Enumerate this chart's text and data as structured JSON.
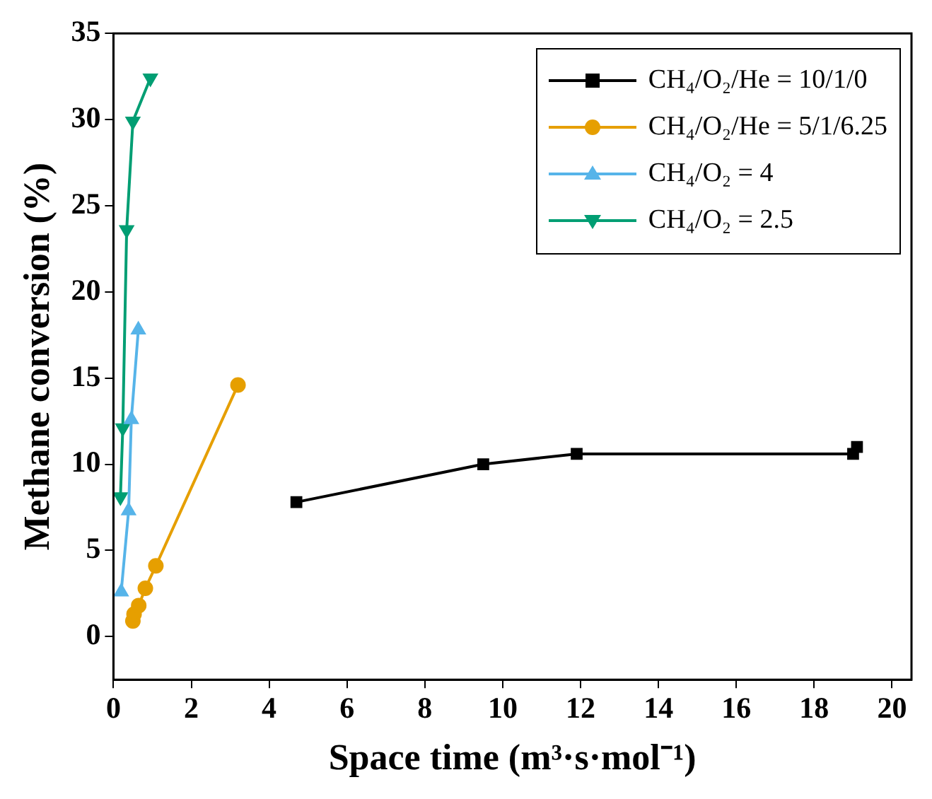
{
  "chart_data": {
    "type": "line",
    "xlabel": "Space time (m³·s·mol⁻¹)",
    "ylabel": "Methane conversion (%)",
    "xlim": [
      0,
      20.5
    ],
    "xticks": [
      0,
      2,
      4,
      6,
      8,
      10,
      12,
      14,
      16,
      18,
      20
    ],
    "ylim": [
      -2.5,
      35
    ],
    "yticks": [
      0,
      5,
      10,
      15,
      20,
      25,
      30,
      35
    ],
    "grid": false,
    "legend": "top right",
    "line_style": "solid",
    "series": [
      {
        "name": "CH₄/O₂/He = 10/1/0",
        "color": "#000000",
        "marker": "square",
        "x": [
          4.7,
          9.5,
          11.9,
          19.0,
          19.1
        ],
        "values": [
          7.8,
          10.0,
          10.6,
          10.6,
          11.0
        ]
      },
      {
        "name": "CH₄/O₂/He = 5/1/6.25",
        "color": "#e69f00",
        "marker": "circle",
        "x": [
          0.5,
          0.53,
          0.65,
          0.82,
          1.09,
          3.2
        ],
        "values": [
          0.9,
          1.3,
          1.8,
          2.8,
          4.1,
          14.6
        ]
      },
      {
        "name": "CH₄/O₂ = 4",
        "color": "#56b4e9",
        "marker": "triangle",
        "x": [
          0.2,
          0.39,
          0.46,
          0.64
        ],
        "values": [
          2.6,
          7.3,
          12.6,
          17.8
        ]
      },
      {
        "name": "CH₄/O₂ = 2.5",
        "color": "#009e73",
        "marker": "triangle-down",
        "x": [
          0.18,
          0.24,
          0.34,
          0.5,
          0.95
        ],
        "values": [
          8.1,
          12.1,
          23.6,
          29.9,
          32.4
        ]
      }
    ]
  }
}
